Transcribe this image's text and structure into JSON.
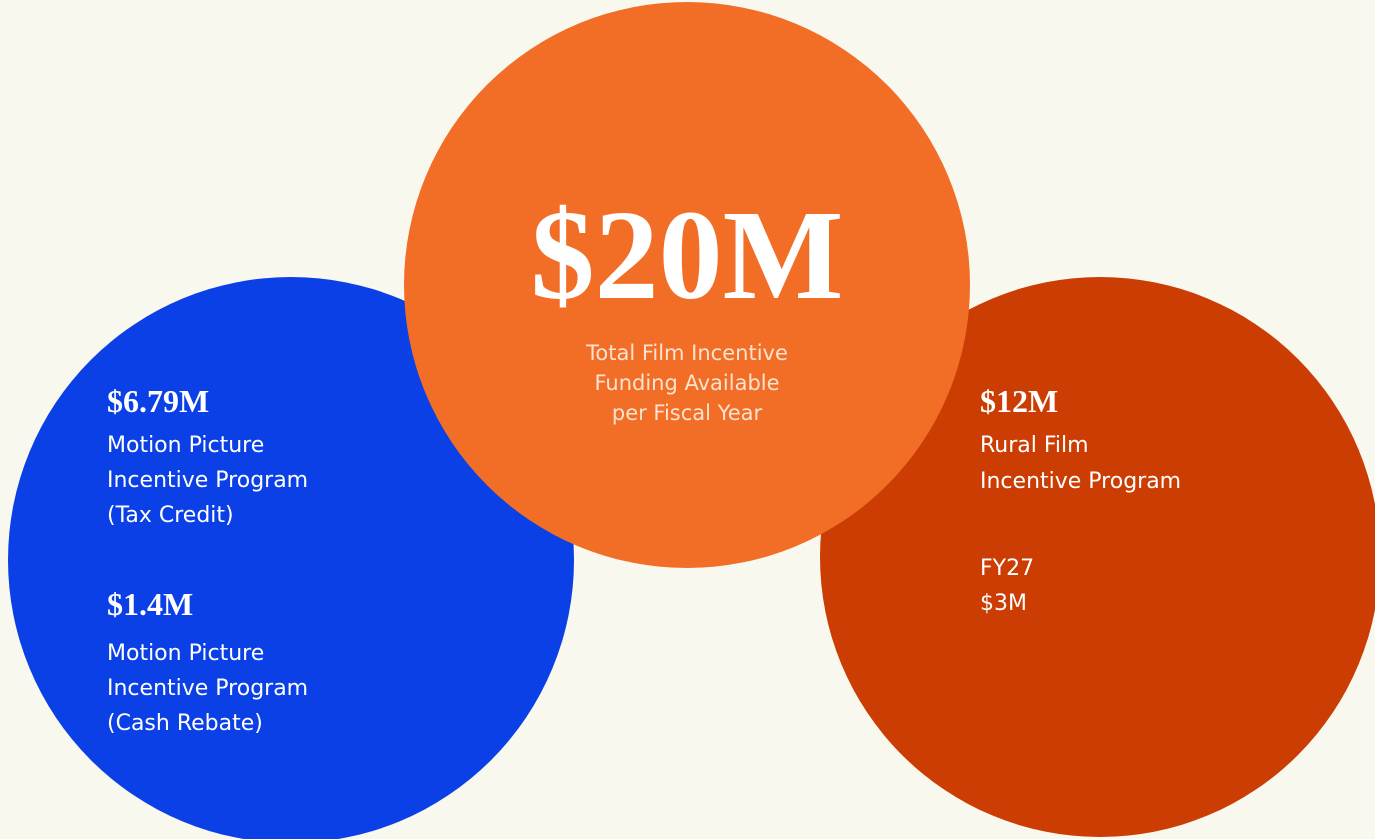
{
  "center": {
    "amount": "$20M",
    "description": [
      "Total Film Incentive",
      "Funding Available",
      "per Fiscal Year"
    ]
  },
  "left": {
    "programs": [
      {
        "amount": "$6.79M",
        "description": [
          "Motion Picture",
          "Incentive Program",
          "(Tax Credit)"
        ]
      },
      {
        "amount": "$1.4M",
        "description": [
          "Motion Picture",
          "Incentive Program",
          "(Cash Rebate)"
        ]
      }
    ]
  },
  "right": {
    "amount": "$12M",
    "description": [
      "Rural Film",
      "Incentive Program"
    ],
    "note_label": "FY27",
    "note_value": "$3M"
  }
}
